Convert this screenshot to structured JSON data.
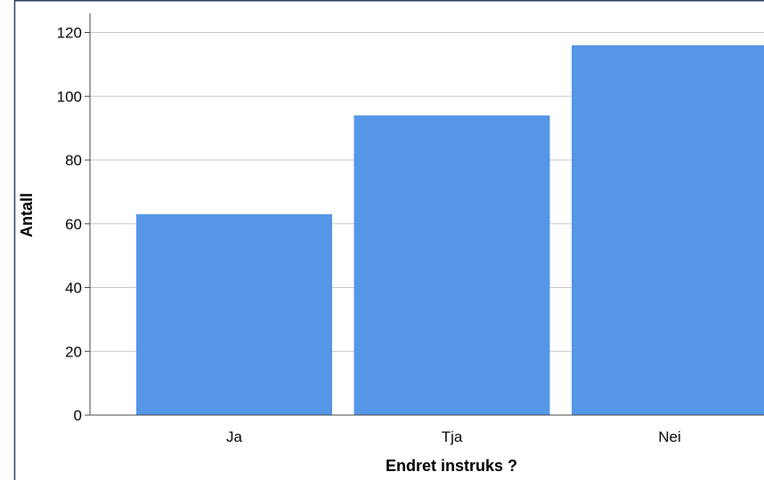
{
  "chart_data": {
    "type": "bar",
    "categories": [
      "Ja",
      "Tja",
      "Nei"
    ],
    "values": [
      63,
      94,
      116
    ],
    "title": "",
    "xlabel": "Endret instruks ?",
    "ylabel": "Antall",
    "ylim": [
      0,
      126
    ],
    "yticks": [
      0,
      20,
      40,
      60,
      80,
      100,
      120
    ],
    "grid": true,
    "legend": "none",
    "bar_color": "#5596e6",
    "grid_color": "#c8c8c8",
    "axis_color": "#444444"
  }
}
